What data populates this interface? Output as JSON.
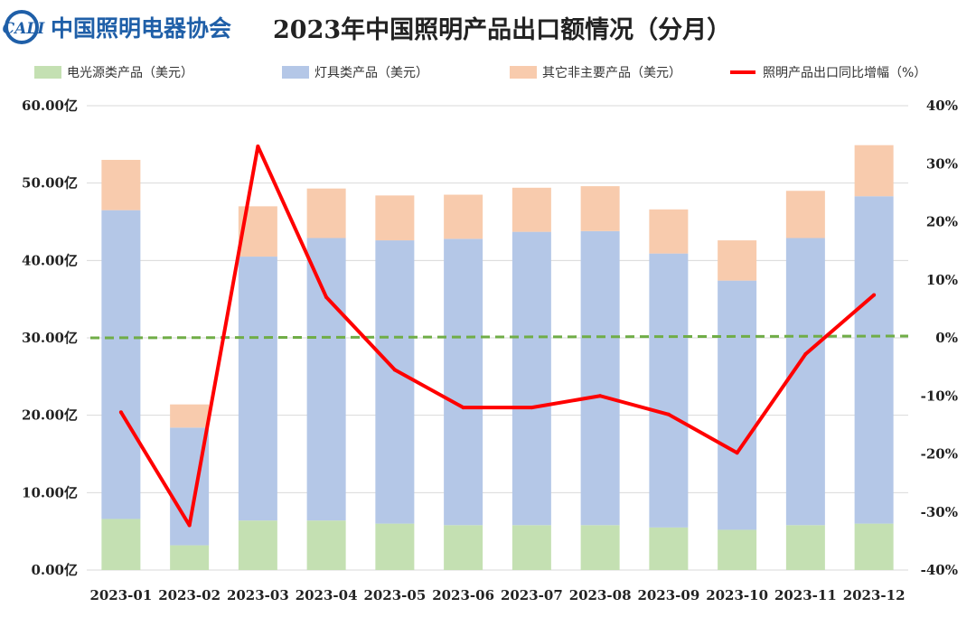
{
  "header": {
    "logo_mark": "CALI",
    "logo_text": "中国照明电器协会",
    "title": "2023年中国照明产品出口额情况（分月）"
  },
  "colors": {
    "light_source": "#c4e0b2",
    "fixtures": "#b4c7e7",
    "other": "#f8cbad",
    "growth_line": "#ff0000",
    "zero_line": "#70ad47",
    "grid": "#d9d9d9",
    "logo": "#1f5fa8"
  },
  "chart_data": {
    "type": "bar",
    "stacked": true,
    "categories": [
      "2023-01",
      "2023-02",
      "2023-03",
      "2023-04",
      "2023-05",
      "2023-06",
      "2023-07",
      "2023-08",
      "2023-09",
      "2023-10",
      "2023-11",
      "2023-12"
    ],
    "series": [
      {
        "name": "电光源类产品（美元）",
        "type": "bar",
        "axis": "left",
        "values": [
          6.6,
          3.2,
          6.4,
          6.4,
          6.0,
          5.8,
          5.8,
          5.8,
          5.5,
          5.2,
          5.8,
          6.0
        ]
      },
      {
        "name": "灯具类产品（美元）",
        "type": "bar",
        "axis": "left",
        "values": [
          39.9,
          15.2,
          34.1,
          36.5,
          36.6,
          37.0,
          37.9,
          38.0,
          35.4,
          32.2,
          37.1,
          42.3
        ]
      },
      {
        "name": "其它非主要产品（美元）",
        "type": "bar",
        "axis": "left",
        "values": [
          6.5,
          3.0,
          6.5,
          6.4,
          5.8,
          5.7,
          5.7,
          5.8,
          5.7,
          5.2,
          6.1,
          6.6
        ]
      },
      {
        "name": "照明产品出口同比增幅（%）",
        "type": "line",
        "axis": "right",
        "values": [
          -12.8,
          -32.3,
          33.0,
          7.0,
          -5.5,
          -12.0,
          -12.0,
          -10.0,
          -13.2,
          -19.8,
          -2.8,
          7.4
        ]
      }
    ],
    "ylim_left": [
      0,
      60
    ],
    "yticks_left": [
      "0.00亿",
      "10.00亿",
      "20.00亿",
      "30.00亿",
      "40.00亿",
      "50.00亿",
      "60.00亿"
    ],
    "ylim_right": [
      -40,
      40
    ],
    "yticks_right": [
      "-40%",
      "-30%",
      "-20%",
      "-10%",
      "0%",
      "10%",
      "20%",
      "30%",
      "40%"
    ],
    "reference_line": {
      "axis": "right",
      "value": 0,
      "style": "dashed"
    },
    "grid": true,
    "legend": "top"
  }
}
